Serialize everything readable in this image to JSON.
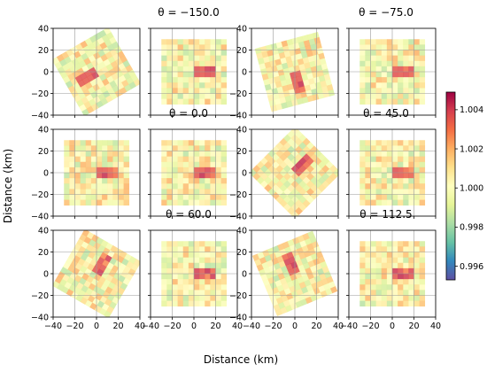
{
  "figure": {
    "xlabel": "Distance (km)",
    "ylabel": "Distance (km)"
  },
  "colorbar": {
    "ticks": [
      "0.996",
      "0.998",
      "1.000",
      "1.002",
      "1.004"
    ],
    "tick_values": [
      0.996,
      0.998,
      1.0,
      1.002,
      1.004
    ],
    "range": [
      0.9953,
      1.0049
    ],
    "colormap": "Spectral_r",
    "colors": [
      "#5e4fa2",
      "#3288bd",
      "#66c2a5",
      "#abdda4",
      "#e6f598",
      "#ffffbf",
      "#fee08b",
      "#fdae61",
      "#f46d43",
      "#d53e4f",
      "#9e0142"
    ]
  },
  "chart_data": {
    "type": "heatmap",
    "xlim": [
      -40,
      40
    ],
    "ylim": [
      -40,
      40
    ],
    "xticks": [
      "−40",
      "−20",
      "0",
      "20",
      "40"
    ],
    "yticks": [
      "40",
      "20",
      "0",
      "−20",
      "−40"
    ],
    "tick_values": [
      -40,
      -20,
      0,
      20,
      40
    ],
    "grid": true,
    "panel_titles": [
      "θ = −150.0",
      "θ = −75.0",
      "θ = 0.0",
      "θ = 45.0",
      "θ = 60.0",
      "θ = 112.5"
    ],
    "panels": [
      {
        "row": 0,
        "col": 0,
        "theta": -150.0
      },
      {
        "row": 0,
        "col": 1,
        "theta": -150.0
      },
      {
        "row": 0,
        "col": 2,
        "theta": -75.0
      },
      {
        "row": 0,
        "col": 3,
        "theta": -75.0
      },
      {
        "row": 1,
        "col": 0,
        "theta": 0.0
      },
      {
        "row": 1,
        "col": 1,
        "theta": 0.0
      },
      {
        "row": 1,
        "col": 2,
        "theta": 45.0
      },
      {
        "row": 1,
        "col": 3,
        "theta": 45.0
      },
      {
        "row": 2,
        "col": 0,
        "theta": 60.0
      },
      {
        "row": 2,
        "col": 1,
        "theta": 60.0
      },
      {
        "row": 2,
        "col": 2,
        "theta": 112.5
      },
      {
        "row": 2,
        "col": 3,
        "theta": 112.5
      }
    ]
  }
}
